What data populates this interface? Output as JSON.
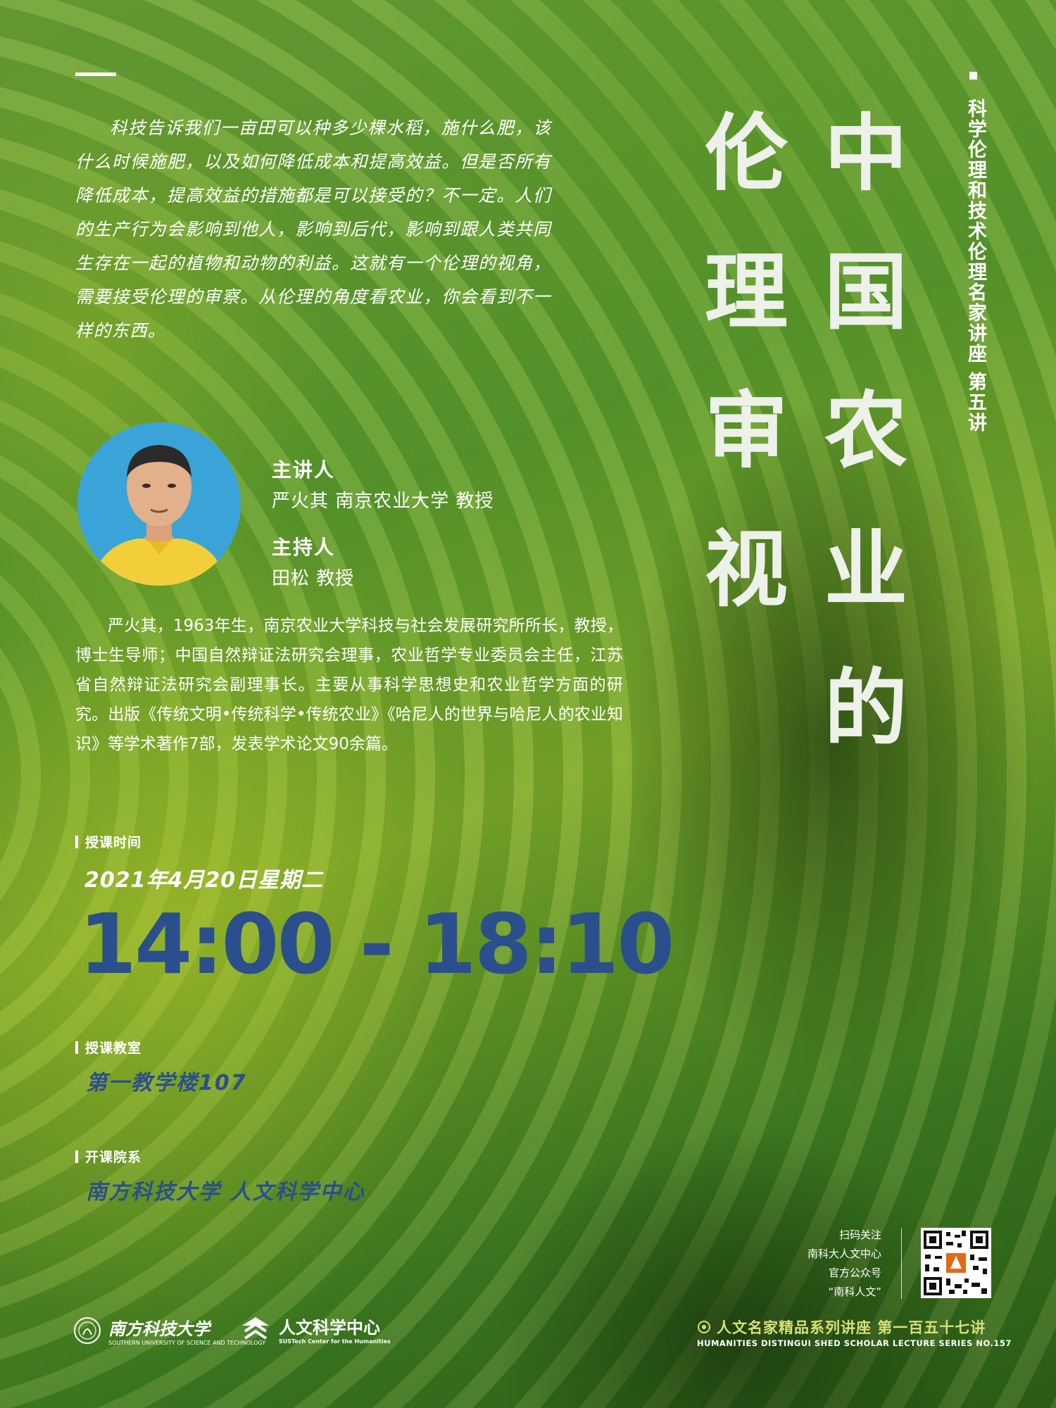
{
  "intro": {
    "text": "科技告诉我们一亩田可以种多少棵水稻，施什么肥，该什么时候施肥，以及如何降低成本和提高效益。但是否所有降低成本，提高效益的措施都是可以接受的？不一定。人们的生产行为会影响到他人，影响到后代，影响到跟人类共同生存在一起的植物和动物的利益。这就有一个伦理的视角，需要接受伦理的审察。从伦理的角度看农业，你会看到不一样的东西。"
  },
  "title": {
    "column_right": [
      "中",
      "国",
      "农",
      "业",
      "的"
    ],
    "column_left": [
      "伦",
      "理",
      "审",
      "视"
    ]
  },
  "subtitle": "科学伦理和技术伦理名家讲座 第五讲",
  "speaker": {
    "label": "主讲人",
    "name_line": "严火其  南京农业大学  教授",
    "host_label": "主持人",
    "host_line": "田松  教授"
  },
  "bio": "严火其，1963年生，南京农业大学科技与社会发展研究所所长，教授，博士生导师；中国自然辩证法研究会理事，农业哲学专业委员会主任，江苏省自然辩证法研究会副理事长。主要从事科学思想史和农业哲学方面的研究。出版《传统文明•传统科学•传统农业》《哈尼人的世界与哈尼人的农业知识》等学术著作7部，发表学术论文90余篇。",
  "schedule": {
    "time_label": "授课时间",
    "date": "2021年4月20日星期二",
    "time": "14:00 - 18:10",
    "room_label": "授课教室",
    "room": "第一教学楼107",
    "dept_label": "开课院系",
    "dept": "南方科技大学 人文科学中心"
  },
  "qr_caption": [
    "扫码关注",
    "南科大人文中心",
    "官方公众号",
    "“南科人文”"
  ],
  "series": {
    "cn": "人文名家精品系列讲座  第一百五十七讲",
    "en": "HUMANITIES DISTINGUI SHED SCHOLAR LECTURE SERIES NO.157"
  },
  "logos": {
    "sustech_name": "南方科技大学",
    "sustech_en": "SOUTHERN UNIVERSITY OF SCIENCE AND TECHNOLOGY",
    "center_name": "人文科学中心",
    "center_en": "SUSTech Center for the Humanities"
  },
  "colors": {
    "accent_blue": "#2b4f8c",
    "series_yellow": "#d8e07a",
    "title_white": "#eef1ea"
  }
}
